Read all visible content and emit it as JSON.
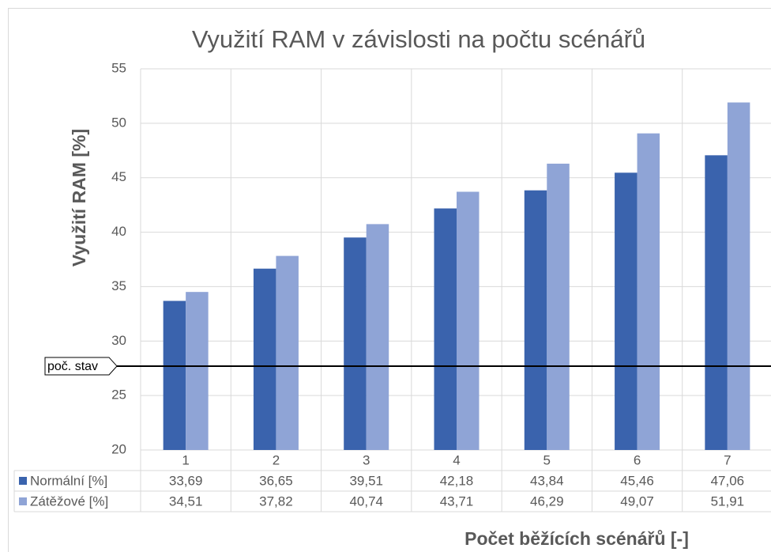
{
  "chart_data": {
    "type": "bar",
    "title": "Využití RAM v závislosti na počtu scénářů",
    "y_label": "Využití RAM [%]",
    "x_label": "Počet běžících scénářů [-]",
    "categories": [
      "1",
      "2",
      "3",
      "4",
      "5",
      "6",
      "7"
    ],
    "series": [
      {
        "name": "Normální [%]",
        "color": "#3a63ad",
        "values": [
          33.69,
          36.65,
          39.51,
          42.18,
          43.84,
          45.46,
          47.06
        ],
        "value_labels": [
          "33,69",
          "36,65",
          "39,51",
          "42,18",
          "43,84",
          "45,46",
          "47,06"
        ]
      },
      {
        "name": "Zátěžové [%]",
        "color": "#8fa4d6",
        "values": [
          34.51,
          37.82,
          40.74,
          43.71,
          46.29,
          49.07,
          51.91
        ],
        "value_labels": [
          "34,51",
          "37,82",
          "40,74",
          "43,71",
          "46,29",
          "49,07",
          "51,91"
        ]
      }
    ],
    "reference_line": {
      "label": "poč. stav",
      "value": 27.7
    },
    "ylim": [
      20,
      55
    ],
    "yticks": [
      20,
      25,
      30,
      35,
      40,
      45,
      50,
      55
    ],
    "grid": true
  }
}
